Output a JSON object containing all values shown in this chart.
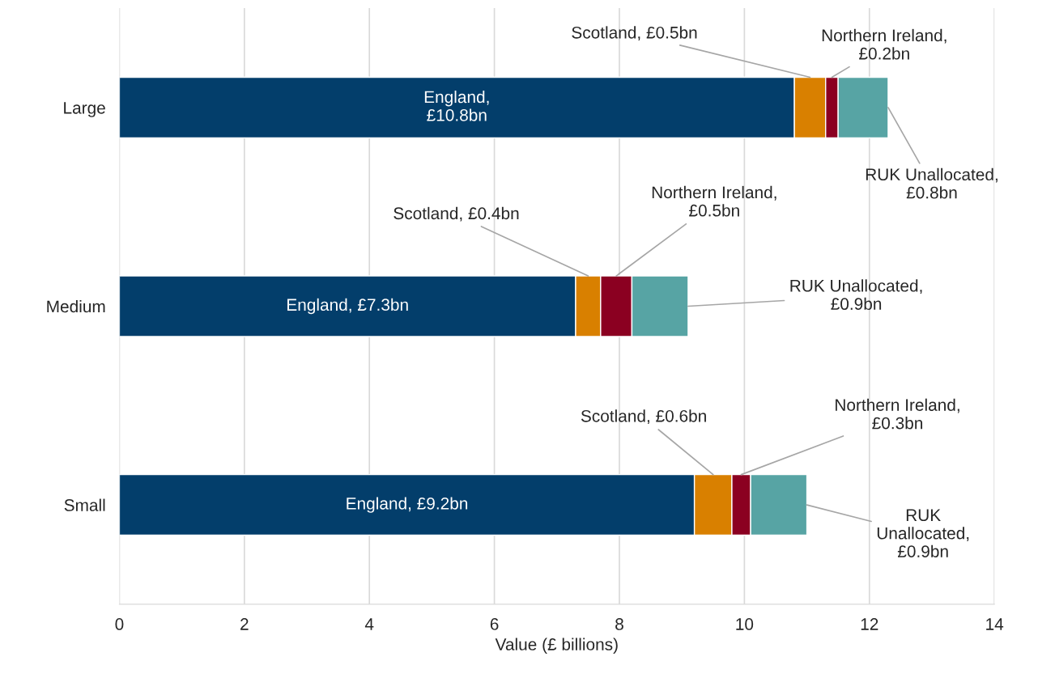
{
  "chart_data": {
    "type": "bar",
    "orientation": "horizontal",
    "stacked": true,
    "categories": [
      "Large",
      "Medium",
      "Small"
    ],
    "series": [
      {
        "color": "#033e6b",
        "values": [
          10.8,
          7.3,
          9.2
        ],
        "value_labels": [
          "England,\n£10.8bn",
          "England, £7.3bn",
          "England, £9.2bn"
        ]
      },
      {
        "color": "#d98000",
        "values": [
          0.5,
          0.4,
          0.6
        ],
        "value_labels": [
          "Scotland, £0.5bn",
          "Scotland, £0.4bn",
          "Scotland, £0.6bn"
        ]
      },
      {
        "color": "#8b0021",
        "values": [
          0.2,
          0.5,
          0.3
        ],
        "value_labels": [
          "Northern Ireland,\n£0.2bn",
          "Northern Ireland,\n£0.5bn",
          "Northern Ireland,\n£0.3bn"
        ]
      },
      {
        "color": "#57a4a4",
        "values": [
          0.8,
          0.9,
          0.9
        ],
        "value_labels": [
          "RUK Unallocated,\n£0.8bn",
          "RUK Unallocated,\n£0.9bn",
          "RUK\nUnallocated,\n£0.9bn"
        ]
      }
    ],
    "xlim": [
      0,
      14
    ],
    "xticks": [
      0,
      2,
      4,
      6,
      8,
      10,
      12,
      14
    ],
    "xlabel": "Value (£ billions)",
    "grid": "x"
  }
}
